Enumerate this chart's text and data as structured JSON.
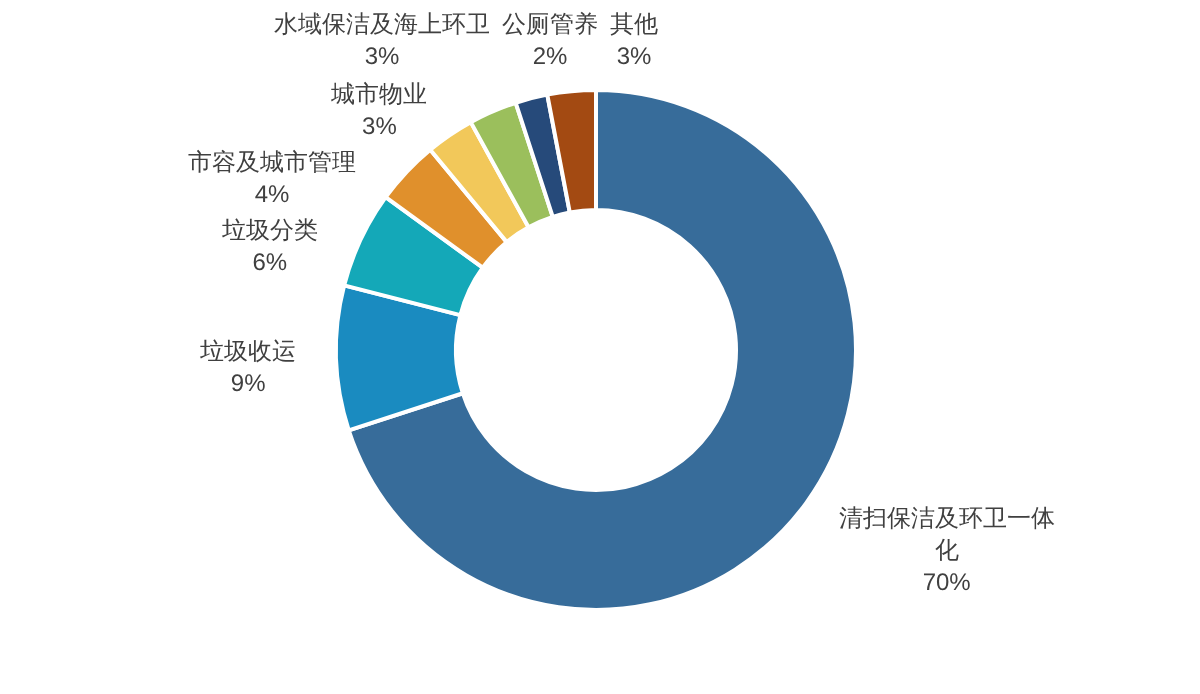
{
  "chart_data": {
    "type": "donut",
    "categories": [
      "清扫保洁及环卫一体化",
      "垃圾收运",
      "垃圾分类",
      "市容及城市管理",
      "城市物业",
      "水域保洁及海上环卫",
      "公厕管养",
      "其他"
    ],
    "values": [
      70,
      9,
      6,
      4,
      3,
      3,
      2,
      3
    ],
    "value_labels": [
      "70%",
      "9%",
      "6%",
      "4%",
      "3%",
      "3%",
      "2%",
      "3%"
    ],
    "colors": [
      "#376c9a",
      "#1a8bc0",
      "#14a8b8",
      "#e0902c",
      "#f2c85a",
      "#9bbf5c",
      "#264a7a",
      "#a34a12"
    ]
  }
}
